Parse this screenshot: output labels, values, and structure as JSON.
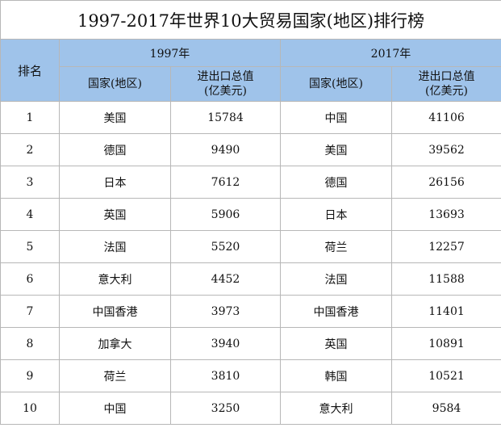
{
  "title": "1997-2017年世界10大贸易国家(地区)排行榜",
  "header": {
    "rank_label": "排名",
    "year_left": "1997年",
    "year_right": "2017年",
    "country_label": "国家(地区)",
    "value_label_line1": "进出口总值",
    "value_label_line2": "(亿美元)"
  },
  "rows": [
    {
      "rank": "1",
      "c1997": "美国",
      "v1997": "15784",
      "c2017": "中国",
      "v2017": "41106"
    },
    {
      "rank": "2",
      "c1997": "德国",
      "v1997": "9490",
      "c2017": "美国",
      "v2017": "39562"
    },
    {
      "rank": "3",
      "c1997": "日本",
      "v1997": "7612",
      "c2017": "德国",
      "v2017": "26156"
    },
    {
      "rank": "4",
      "c1997": "英国",
      "v1997": "5906",
      "c2017": "日本",
      "v2017": "13693"
    },
    {
      "rank": "5",
      "c1997": "法国",
      "v1997": "5520",
      "c2017": "荷兰",
      "v2017": "12257"
    },
    {
      "rank": "6",
      "c1997": "意大利",
      "v1997": "4452",
      "c2017": "法国",
      "v2017": "11588"
    },
    {
      "rank": "7",
      "c1997": "中国香港",
      "v1997": "3973",
      "c2017": "中国香港",
      "v2017": "11401"
    },
    {
      "rank": "8",
      "c1997": "加拿大",
      "v1997": "3940",
      "c2017": "英国",
      "v2017": "10891"
    },
    {
      "rank": "9",
      "c1997": "荷兰",
      "v1997": "3810",
      "c2017": "韩国",
      "v2017": "10521"
    },
    {
      "rank": "10",
      "c1997": "中国",
      "v1997": "3250",
      "c2017": "意大利",
      "v2017": "9584"
    }
  ]
}
